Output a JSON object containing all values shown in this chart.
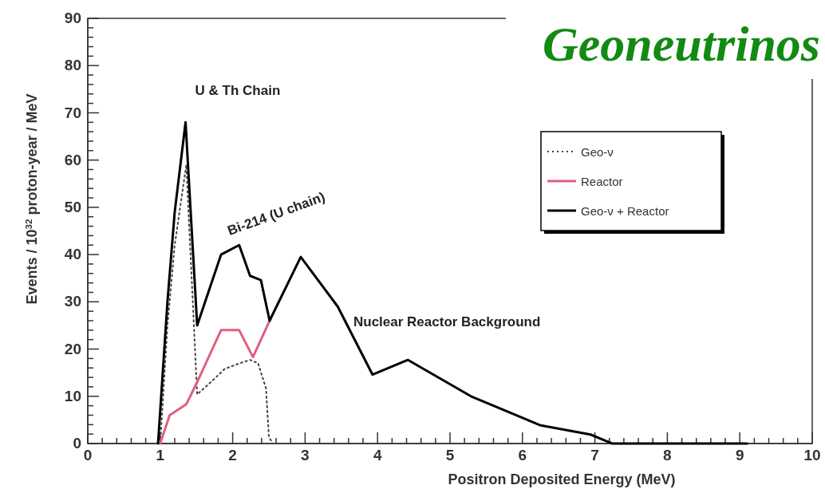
{
  "chart_data": {
    "type": "line",
    "title": "Geoneutrinos",
    "xlabel": "Positron Deposited Energy (MeV)",
    "ylabel": "Events / 10$^{32}$ proton-year / MeV",
    "annotations": [
      {
        "text": "U & Th Chain",
        "x": 1.35,
        "y": 68
      },
      {
        "text": "Bi-214 (U chain)",
        "x": 2.09,
        "y": 42
      },
      "Nuclear Reactor Background"
    ],
    "series": [
      {
        "name": "Geo-ν",
        "color": "#444444",
        "line_style": "dotted",
        "x": [
          1.0,
          1.1,
          1.2,
          1.36,
          1.51,
          1.7,
          1.89,
          2.1,
          2.24,
          2.35,
          2.46,
          2.5,
          2.55
        ],
        "values": [
          0,
          25,
          42,
          59,
          10.4,
          13,
          15.8,
          17,
          17.7,
          17,
          11.7,
          1.5,
          0
        ]
      },
      {
        "name": "Reactor",
        "color": "#e0607e",
        "line_style": "solid",
        "x": [
          1.0,
          1.13,
          1.36,
          1.51,
          1.84,
          2.09,
          2.28,
          2.51
        ],
        "values": [
          0,
          6,
          8.3,
          13,
          24,
          24,
          18.3,
          26
        ]
      },
      {
        "name": "Geo-ν + Reactor",
        "color": "#000000",
        "line_style": "solid",
        "x": [
          0.97,
          1.1,
          1.2,
          1.35,
          1.51,
          1.84,
          2.09,
          2.24,
          2.39,
          2.51,
          2.94,
          3.45,
          3.93,
          4.42,
          5.29,
          6.24,
          6.94,
          7.24,
          9.1
        ],
        "values": [
          0,
          30,
          49,
          68,
          25,
          40,
          42,
          35.5,
          34.6,
          26,
          39.5,
          29,
          14.6,
          17.7,
          10,
          3.9,
          1.9,
          0,
          0
        ]
      }
    ],
    "xlim": [
      0,
      10
    ],
    "ylim": [
      0,
      90
    ],
    "xticks": [
      0,
      {
        "value": 0.2,
        "label": null
      },
      {
        "value": 0.4,
        "label": null
      },
      {
        "value": 0.6,
        "label": null
      },
      {
        "value": 0.8,
        "label": null
      },
      1,
      {
        "value": 1.2,
        "label": null
      },
      {
        "value": 1.4,
        "label": null
      },
      {
        "value": 1.6,
        "label": null
      },
      {
        "value": 1.8,
        "label": null
      },
      2,
      {
        "value": 2.2,
        "label": null
      },
      {
        "value": 2.4,
        "label": null
      },
      {
        "value": 2.6,
        "label": null
      },
      {
        "value": 2.8,
        "label": null
      },
      3,
      {
        "value": 3.2,
        "label": null
      },
      {
        "value": 3.4,
        "label": null
      },
      {
        "value": 3.6,
        "label": null
      },
      {
        "value": 3.8,
        "label": null
      },
      4,
      {
        "value": 4.2,
        "label": null
      },
      {
        "value": 4.4,
        "label": null
      },
      {
        "value": 4.6,
        "label": null
      },
      {
        "value": 4.8,
        "label": null
      },
      5,
      {
        "value": 5.2,
        "label": null
      },
      {
        "value": 5.4,
        "label": null
      },
      {
        "value": 5.6,
        "label": null
      },
      {
        "value": 5.8,
        "label": null
      },
      6,
      {
        "value": 6.2,
        "label": null
      },
      {
        "value": 6.4,
        "label": null
      },
      {
        "value": 6.6,
        "label": null
      },
      {
        "value": 6.8,
        "label": null
      },
      7,
      {
        "value": 7.2,
        "label": null
      },
      {
        "value": 7.4,
        "label": null
      },
      {
        "value": 7.6,
        "label": null
      },
      {
        "value": 7.8,
        "label": null
      },
      8,
      {
        "value": 8.2,
        "label": null
      },
      {
        "value": 8.4,
        "label": null
      },
      {
        "value": 8.6,
        "label": null
      },
      {
        "value": 8.8,
        "label": null
      },
      9,
      {
        "value": 9.2,
        "label": null
      },
      {
        "value": 9.4,
        "label": null
      },
      {
        "value": 9.6,
        "label": null
      },
      {
        "value": 9.8,
        "label": null
      },
      10
    ],
    "yticks": [
      0,
      {
        "value": 2,
        "label": null
      },
      {
        "value": 4,
        "label": null
      },
      {
        "value": 6,
        "label": null
      },
      {
        "value": 8,
        "label": null
      },
      10,
      {
        "value": 12,
        "label": null
      },
      {
        "value": 14,
        "label": null
      },
      {
        "value": 16,
        "label": null
      },
      {
        "value": 18,
        "label": null
      },
      20,
      {
        "value": 22,
        "label": null
      },
      {
        "value": 24,
        "label": null
      },
      {
        "value": 26,
        "label": null
      },
      {
        "value": 28,
        "label": null
      },
      30,
      {
        "value": 32,
        "label": null
      },
      {
        "value": 34,
        "label": null
      },
      {
        "value": 36,
        "label": null
      },
      {
        "value": 38,
        "label": null
      },
      40,
      {
        "value": 42,
        "label": null
      },
      {
        "value": 44,
        "label": null
      },
      {
        "value": 46,
        "label": null
      },
      {
        "value": 48,
        "label": null
      },
      50,
      {
        "value": 52,
        "label": null
      },
      {
        "value": 54,
        "label": null
      },
      {
        "value": 56,
        "label": null
      },
      {
        "value": 58,
        "label": null
      },
      60,
      {
        "value": 62,
        "label": null
      },
      {
        "value": 64,
        "label": null
      },
      {
        "value": 66,
        "label": null
      },
      {
        "value": 68,
        "label": null
      },
      70,
      {
        "value": 72,
        "label": null
      },
      {
        "value": 74,
        "label": null
      },
      {
        "value": 76,
        "label": null
      },
      {
        "value": 78,
        "label": null
      },
      80,
      {
        "value": 82,
        "label": null
      },
      {
        "value": 84,
        "label": null
      },
      {
        "value": 86,
        "label": null
      },
      {
        "value": 88,
        "label": null
      },
      90
    ],
    "grid": false,
    "legend": "top right",
    "marker": "none"
  }
}
